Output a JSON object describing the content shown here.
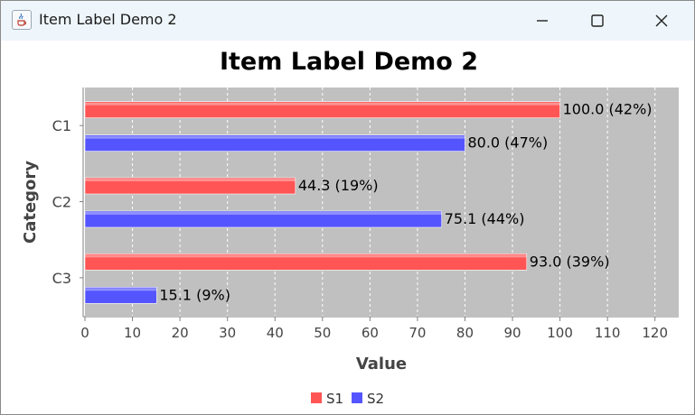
{
  "window": {
    "title": "Item Label Demo 2"
  },
  "chart_data": {
    "type": "bar",
    "orientation": "horizontal",
    "title": "Item Label Demo 2",
    "xlabel": "Value",
    "ylabel": "Category",
    "categories": [
      "C1",
      "C2",
      "C3"
    ],
    "series": [
      {
        "name": "S1",
        "values": [
          100.0,
          44.3,
          93.0
        ],
        "labels": [
          "100.0 (42%)",
          "44.3 (19%)",
          "93.0 (39%)"
        ],
        "color": "#ff5555"
      },
      {
        "name": "S2",
        "values": [
          80.0,
          75.1,
          15.1
        ],
        "labels": [
          "80.0 (47%)",
          "75.1 (44%)",
          "15.1 (9%)"
        ],
        "color": "#5555ff"
      }
    ],
    "xlim": [
      0,
      125
    ],
    "xticks": [
      "0",
      "10",
      "20",
      "30",
      "40",
      "50",
      "60",
      "70",
      "80",
      "90",
      "100",
      "110",
      "120"
    ],
    "grid": true,
    "plot_background": "#c0c0c0",
    "legend_position": "bottom"
  }
}
